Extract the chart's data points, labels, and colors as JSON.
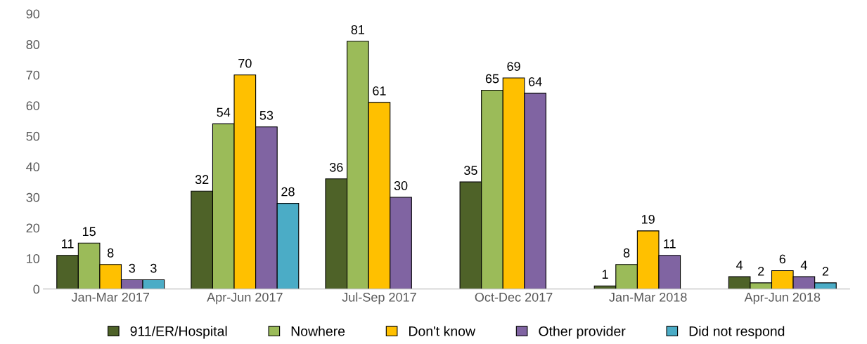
{
  "chart_data": {
    "type": "bar",
    "categories": [
      "Jan-Mar 2017",
      "Apr-Jun 2017",
      "Jul-Sep 2017",
      "Oct-Dec 2017",
      "Jan-Mar 2018",
      "Apr-Jun 2018"
    ],
    "series": [
      {
        "name": "911/ER/Hospital",
        "color": "#4e6228",
        "values": [
          11,
          32,
          36,
          35,
          1,
          4
        ]
      },
      {
        "name": "Nowhere",
        "color": "#9bbb59",
        "values": [
          15,
          54,
          81,
          65,
          8,
          2
        ]
      },
      {
        "name": "Don't know",
        "color": "#ffc000",
        "values": [
          8,
          70,
          61,
          69,
          19,
          6
        ]
      },
      {
        "name": "Other provider",
        "color": "#8064a2",
        "values": [
          3,
          53,
          30,
          64,
          11,
          4
        ]
      },
      {
        "name": "Did not respond",
        "color": "#4bacc6",
        "values": [
          3,
          28,
          null,
          null,
          null,
          2
        ]
      }
    ],
    "ylim": [
      0,
      90
    ],
    "yticks": [
      0,
      10,
      20,
      30,
      40,
      50,
      60,
      70,
      80,
      90
    ],
    "grid": false,
    "legend": "bottom",
    "data_labels": true
  }
}
